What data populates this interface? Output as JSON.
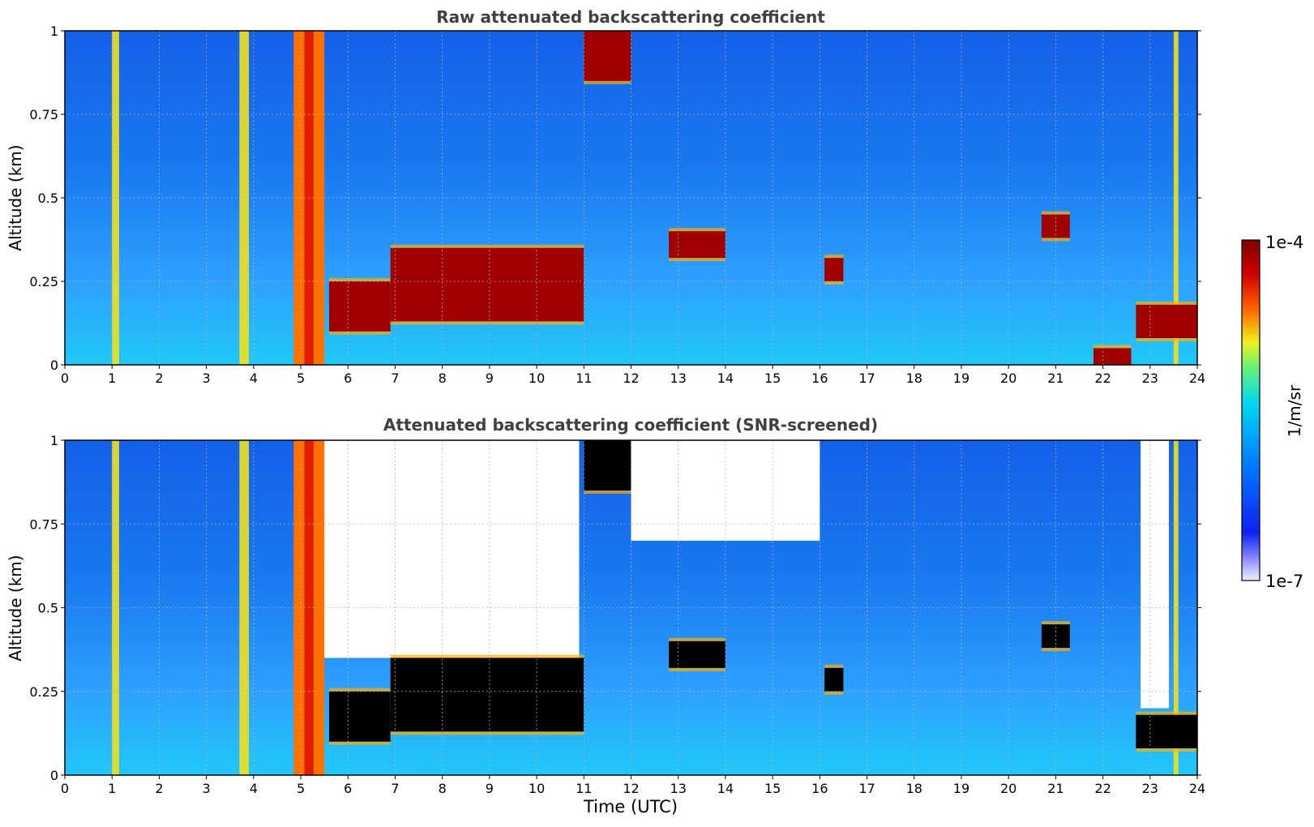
{
  "chart_data": [
    {
      "type": "heatmap",
      "title": "Raw attenuated backscattering coefficient",
      "xlabel": "",
      "ylabel": "Altitude (km)",
      "xlim": [
        0,
        24
      ],
      "ylim": [
        0,
        1
      ],
      "x_ticks": [
        "0",
        "1",
        "2",
        "3",
        "4",
        "5",
        "6",
        "7",
        "8",
        "9",
        "10",
        "11",
        "12",
        "13",
        "14",
        "15",
        "16",
        "17",
        "18",
        "19",
        "20",
        "21",
        "22",
        "23",
        "24"
      ],
      "y_ticks": [
        "0",
        "0.25",
        "0.5",
        "0.75",
        "1"
      ],
      "grid": true,
      "layers": [
        {
          "t0": 5.6,
          "t1": 6.9,
          "h0": 0.1,
          "h1": 0.25,
          "level": "high"
        },
        {
          "t0": 6.9,
          "t1": 11.0,
          "h0": 0.13,
          "h1": 0.35,
          "level": "high"
        },
        {
          "t0": 11.0,
          "t1": 12.0,
          "h0": 0.85,
          "h1": 1.0,
          "level": "high"
        },
        {
          "t0": 12.8,
          "t1": 14.0,
          "h0": 0.32,
          "h1": 0.4,
          "level": "high"
        },
        {
          "t0": 16.1,
          "t1": 16.5,
          "h0": 0.25,
          "h1": 0.32,
          "level": "high"
        },
        {
          "t0": 20.7,
          "t1": 21.3,
          "h0": 0.38,
          "h1": 0.45,
          "level": "high"
        },
        {
          "t0": 22.7,
          "t1": 24.0,
          "h0": 0.08,
          "h1": 0.18,
          "level": "high"
        },
        {
          "t0": 21.8,
          "t1": 22.6,
          "h0": 0.0,
          "h1": 0.05,
          "level": "high"
        }
      ],
      "columns": [
        {
          "t0": 1.0,
          "t1": 1.15,
          "level": "mid"
        },
        {
          "t0": 3.7,
          "t1": 3.9,
          "level": "mid"
        },
        {
          "t0": 4.85,
          "t1": 5.5,
          "level": "high"
        },
        {
          "t0": 23.5,
          "t1": 23.6,
          "level": "mid"
        }
      ]
    },
    {
      "type": "heatmap",
      "title": "Attenuated backscattering coefficient (SNR-screened)",
      "xlabel": "Time (UTC)",
      "ylabel": "Altitude (km)",
      "xlim": [
        0,
        24
      ],
      "ylim": [
        0,
        1
      ],
      "x_ticks": [
        "0",
        "1",
        "2",
        "3",
        "4",
        "5",
        "6",
        "7",
        "8",
        "9",
        "10",
        "11",
        "12",
        "13",
        "14",
        "15",
        "16",
        "17",
        "18",
        "19",
        "20",
        "21",
        "22",
        "23",
        "24"
      ],
      "y_ticks": [
        "0",
        "0.25",
        "0.5",
        "0.75",
        "1"
      ],
      "grid": true,
      "layers": [
        {
          "t0": 5.6,
          "t1": 6.9,
          "h0": 0.1,
          "h1": 0.25,
          "level": "saturated"
        },
        {
          "t0": 6.9,
          "t1": 11.0,
          "h0": 0.13,
          "h1": 0.35,
          "level": "saturated"
        },
        {
          "t0": 11.0,
          "t1": 12.0,
          "h0": 0.85,
          "h1": 1.0,
          "level": "saturated"
        },
        {
          "t0": 12.8,
          "t1": 14.0,
          "h0": 0.32,
          "h1": 0.4,
          "level": "saturated"
        },
        {
          "t0": 16.1,
          "t1": 16.5,
          "h0": 0.25,
          "h1": 0.32,
          "level": "saturated"
        },
        {
          "t0": 20.7,
          "t1": 21.3,
          "h0": 0.38,
          "h1": 0.45,
          "level": "saturated"
        },
        {
          "t0": 22.7,
          "t1": 24.0,
          "h0": 0.08,
          "h1": 0.18,
          "level": "saturated"
        }
      ],
      "columns": [
        {
          "t0": 1.0,
          "t1": 1.15,
          "level": "mid"
        },
        {
          "t0": 3.7,
          "t1": 3.9,
          "level": "mid"
        },
        {
          "t0": 4.85,
          "t1": 5.5,
          "level": "high"
        },
        {
          "t0": 23.5,
          "t1": 23.6,
          "level": "mid"
        }
      ],
      "screened_regions": [
        {
          "t0": 5.5,
          "t1": 10.9,
          "h0": 0.35,
          "h1": 1.0
        },
        {
          "t0": 12.0,
          "t1": 16.0,
          "h0": 0.7,
          "h1": 1.0
        },
        {
          "t0": 22.8,
          "t1": 23.4,
          "h0": 0.2,
          "h1": 1.0
        }
      ]
    }
  ],
  "colorbar": {
    "max_label": "1e-4",
    "min_label": "1e-7",
    "label": "1/m/sr",
    "colors": [
      "#f0f0ff",
      "#1020f0",
      "#0080ff",
      "#00d8f0",
      "#f0f020",
      "#ff6000",
      "#c00000",
      "#800000"
    ]
  }
}
